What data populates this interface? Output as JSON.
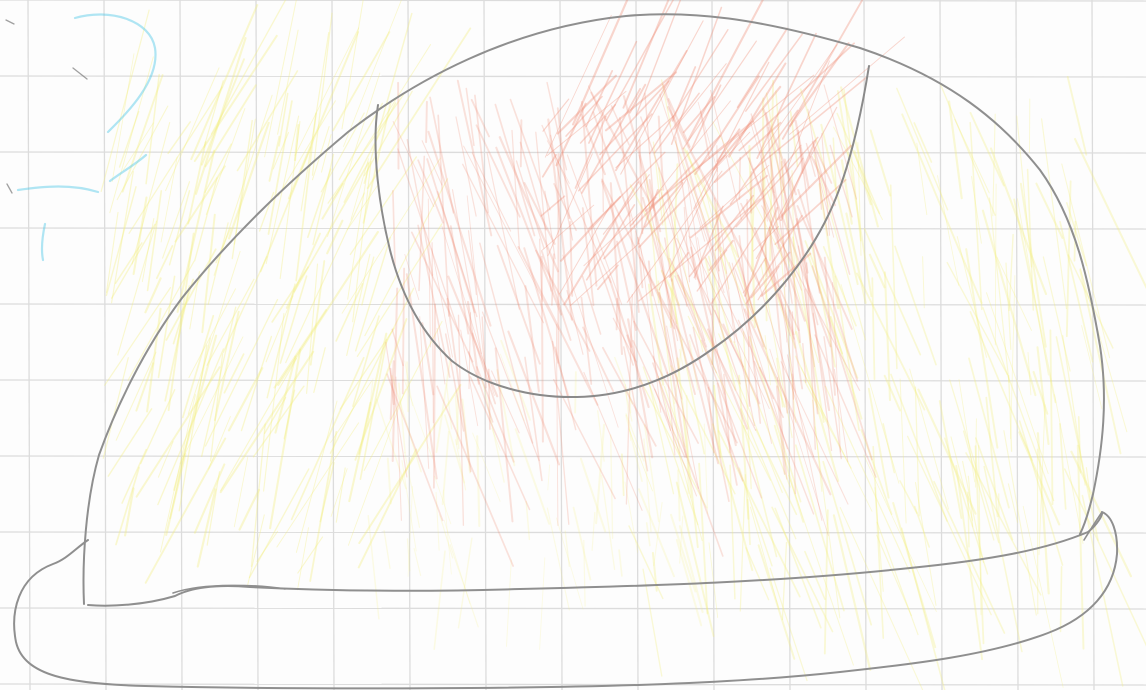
{
  "page": {
    "kind": "graph-paper",
    "paper_color": "#fdfdfd",
    "grid_color": "#dcdcdc"
  },
  "colors": {
    "outline": "#8f8f8f",
    "yellow_shading": "#f3ee7a",
    "red_shading": "#ef8a73",
    "blue_mark": "#4fc7e6",
    "dark_mark": "#777777"
  }
}
